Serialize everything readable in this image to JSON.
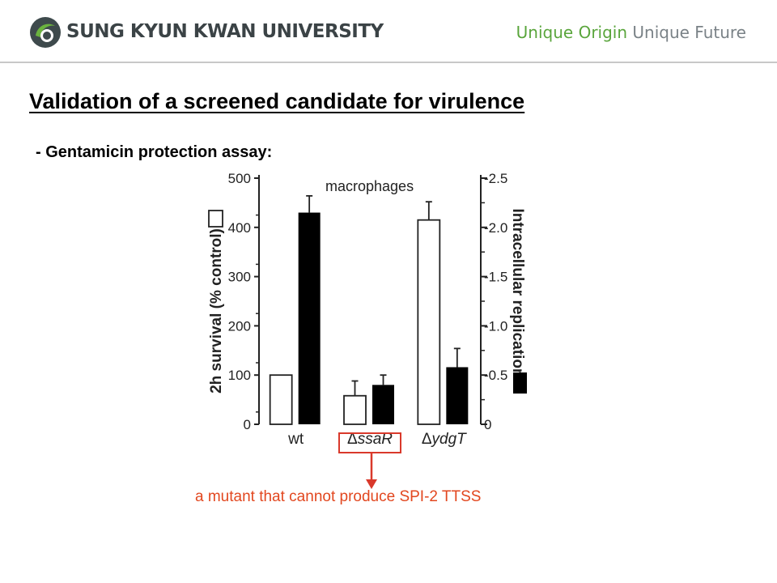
{
  "header": {
    "university_name": "SUNG KYUN KWAN UNIVERSITY",
    "slogan_part1": "Unique Origin",
    "slogan_part2": "Unique Future",
    "logo_icon": "skku-seal-icon"
  },
  "slide": {
    "title": "Validation of a screened candidate for virulence",
    "subtitle": "- Gentamicin protection assay:",
    "callout_text": "a mutant that cannot produce SPI-2 TTSS"
  },
  "colors": {
    "accent_red": "#e2471f",
    "slogan_green": "#5aa53c",
    "slogan_gray": "#7a8287"
  },
  "chart_data": {
    "type": "bar",
    "categories": [
      "wt",
      "ΔssaR",
      "ΔydgT"
    ],
    "category_prefix": [
      "",
      "Δ",
      "Δ"
    ],
    "category_name": [
      "wt",
      "ssaR",
      "ydgT"
    ],
    "category_italic": [
      false,
      true,
      true
    ],
    "annotation": "macrophages",
    "series": [
      {
        "name": "2h survival (% control)",
        "axis": "left",
        "values": [
          100,
          58,
          415
        ],
        "errors": [
          0,
          30,
          37
        ]
      },
      {
        "name": "Intracellular replication",
        "axis": "right",
        "values": [
          2.15,
          0.4,
          0.58
        ],
        "errors": [
          0.17,
          0.1,
          0.19
        ]
      }
    ],
    "left_axis": {
      "label": "2h survival (% control)",
      "ylim": [
        0,
        500
      ],
      "ticks": [
        "0",
        "100",
        "200",
        "300",
        "400",
        "500"
      ]
    },
    "right_axis": {
      "label": "Intracellular replication",
      "ylim": [
        0,
        2.5
      ],
      "ticks": [
        "0",
        "0.5",
        "1.0",
        "1.5",
        "2.0",
        "2.5"
      ]
    },
    "grid": false
  }
}
